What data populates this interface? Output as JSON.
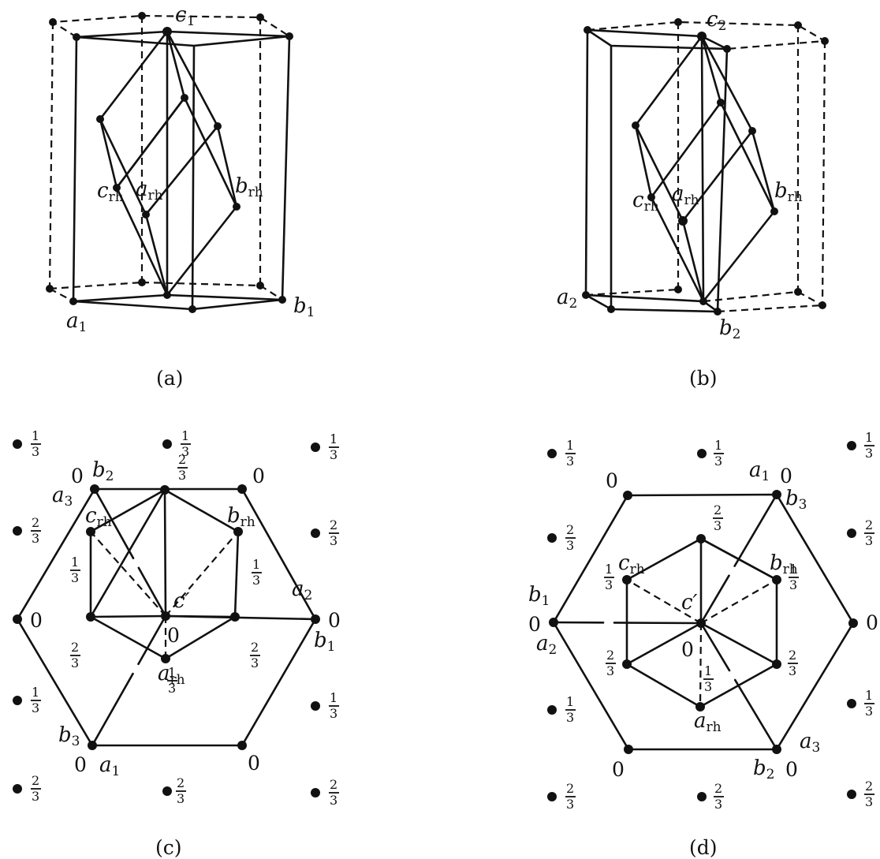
{
  "captions": {
    "a": "(a)",
    "b": "(b)",
    "c": "(c)",
    "d": "(d)"
  },
  "vector_symbols": {
    "a": "a",
    "b": "b",
    "c": "c",
    "c_prime": "c′"
  },
  "subscripts": {
    "one": "1",
    "two": "2",
    "three": "3",
    "rh": "rh"
  },
  "heights": {
    "zero": "0",
    "one_third": "1",
    "two_thirds": "2",
    "denominator": "3"
  }
}
